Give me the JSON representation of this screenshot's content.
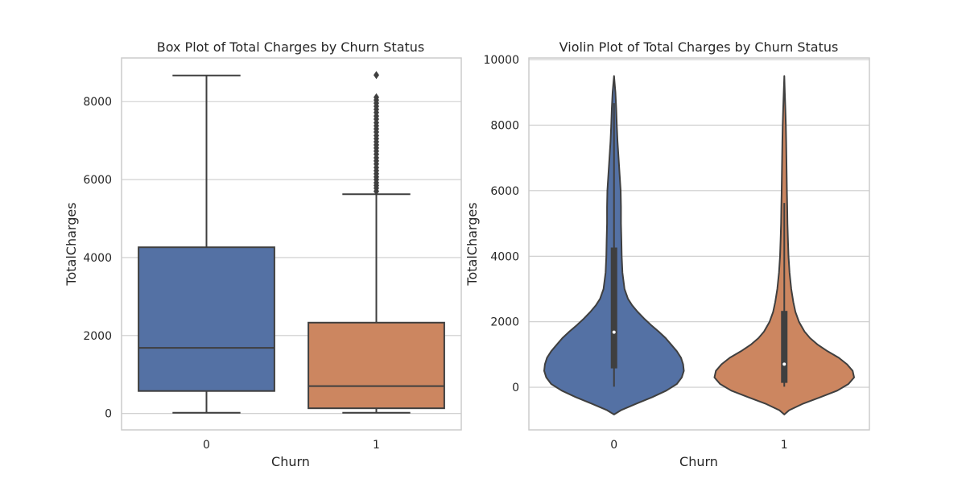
{
  "chart_data": [
    {
      "type": "box",
      "title": "Box Plot of Total Charges by Churn Status",
      "xlabel": "Churn",
      "ylabel": "TotalCharges",
      "categories": [
        "0",
        "1"
      ],
      "ylim": [
        -420,
        9120
      ],
      "yticks": [
        0,
        2000,
        4000,
        6000,
        8000
      ],
      "grid": true,
      "colors": [
        "#5471a4",
        "#cc8660"
      ],
      "boxes": [
        {
          "category": "0",
          "whisker_low": 18.8,
          "q1": 577,
          "median": 1683,
          "q3": 4264,
          "whisker_high": 8672,
          "outliers": []
        },
        {
          "category": "1",
          "whisker_low": 18.8,
          "q1": 134,
          "median": 704,
          "q3": 2331,
          "whisker_high": 5625,
          "outliers": [
            5700,
            5780,
            5850,
            5920,
            6000,
            6070,
            6150,
            6230,
            6310,
            6400,
            6480,
            6560,
            6650,
            6730,
            6810,
            6890,
            6970,
            7050,
            7130,
            7220,
            7300,
            7380,
            7460,
            7550,
            7630,
            7720,
            7800,
            7880,
            7960,
            8040,
            8110,
            8680
          ]
        }
      ]
    },
    {
      "type": "violin",
      "title": "Violin Plot of Total Charges by Churn Status",
      "xlabel": "Churn",
      "ylabel": "TotalCharges",
      "categories": [
        "0",
        "1"
      ],
      "ylim": [
        -1300,
        10050
      ],
      "yticks": [
        0,
        2000,
        4000,
        6000,
        8000,
        10000
      ],
      "grid": true,
      "colors": [
        "#5471a4",
        "#cc8660"
      ],
      "violins": [
        {
          "category": "0",
          "q1": 577,
          "median": 1683,
          "q3": 4264,
          "whisker_low": 18.8,
          "whisker_high": 8672,
          "density": [
            [
              -830,
              0
            ],
            [
              -700,
              0.1
            ],
            [
              -500,
              0.32
            ],
            [
              -300,
              0.55
            ],
            [
              -100,
              0.75
            ],
            [
              100,
              0.9
            ],
            [
              300,
              0.97
            ],
            [
              500,
              1.0
            ],
            [
              700,
              0.99
            ],
            [
              900,
              0.96
            ],
            [
              1100,
              0.9
            ],
            [
              1300,
              0.82
            ],
            [
              1500,
              0.74
            ],
            [
              1700,
              0.64
            ],
            [
              1900,
              0.53
            ],
            [
              2100,
              0.43
            ],
            [
              2300,
              0.34
            ],
            [
              2500,
              0.26
            ],
            [
              2700,
              0.2
            ],
            [
              3000,
              0.15
            ],
            [
              3500,
              0.12
            ],
            [
              4000,
              0.11
            ],
            [
              4500,
              0.105
            ],
            [
              5000,
              0.1
            ],
            [
              5500,
              0.1
            ],
            [
              6000,
              0.095
            ],
            [
              6500,
              0.08
            ],
            [
              7000,
              0.065
            ],
            [
              7500,
              0.05
            ],
            [
              8000,
              0.04
            ],
            [
              8500,
              0.032
            ],
            [
              9000,
              0.02
            ],
            [
              9200,
              0.012
            ],
            [
              9500,
              0
            ]
          ]
        },
        {
          "category": "1",
          "q1": 134,
          "median": 704,
          "q3": 2331,
          "whisker_low": 18.8,
          "whisker_high": 5625,
          "density": [
            [
              -830,
              0
            ],
            [
              -700,
              0.07
            ],
            [
              -500,
              0.27
            ],
            [
              -300,
              0.52
            ],
            [
              -100,
              0.76
            ],
            [
              100,
              0.92
            ],
            [
              300,
              1.0
            ],
            [
              500,
              0.98
            ],
            [
              700,
              0.9
            ],
            [
              900,
              0.78
            ],
            [
              1100,
              0.62
            ],
            [
              1300,
              0.48
            ],
            [
              1500,
              0.37
            ],
            [
              1700,
              0.29
            ],
            [
              2000,
              0.21
            ],
            [
              2300,
              0.16
            ],
            [
              2600,
              0.13
            ],
            [
              3000,
              0.1
            ],
            [
              3500,
              0.075
            ],
            [
              4000,
              0.06
            ],
            [
              4500,
              0.052
            ],
            [
              5000,
              0.046
            ],
            [
              5500,
              0.042
            ],
            [
              6000,
              0.038
            ],
            [
              6500,
              0.034
            ],
            [
              7000,
              0.03
            ],
            [
              7500,
              0.027
            ],
            [
              8000,
              0.022
            ],
            [
              8500,
              0.015
            ],
            [
              9000,
              0.008
            ],
            [
              9500,
              0
            ]
          ]
        }
      ]
    }
  ]
}
